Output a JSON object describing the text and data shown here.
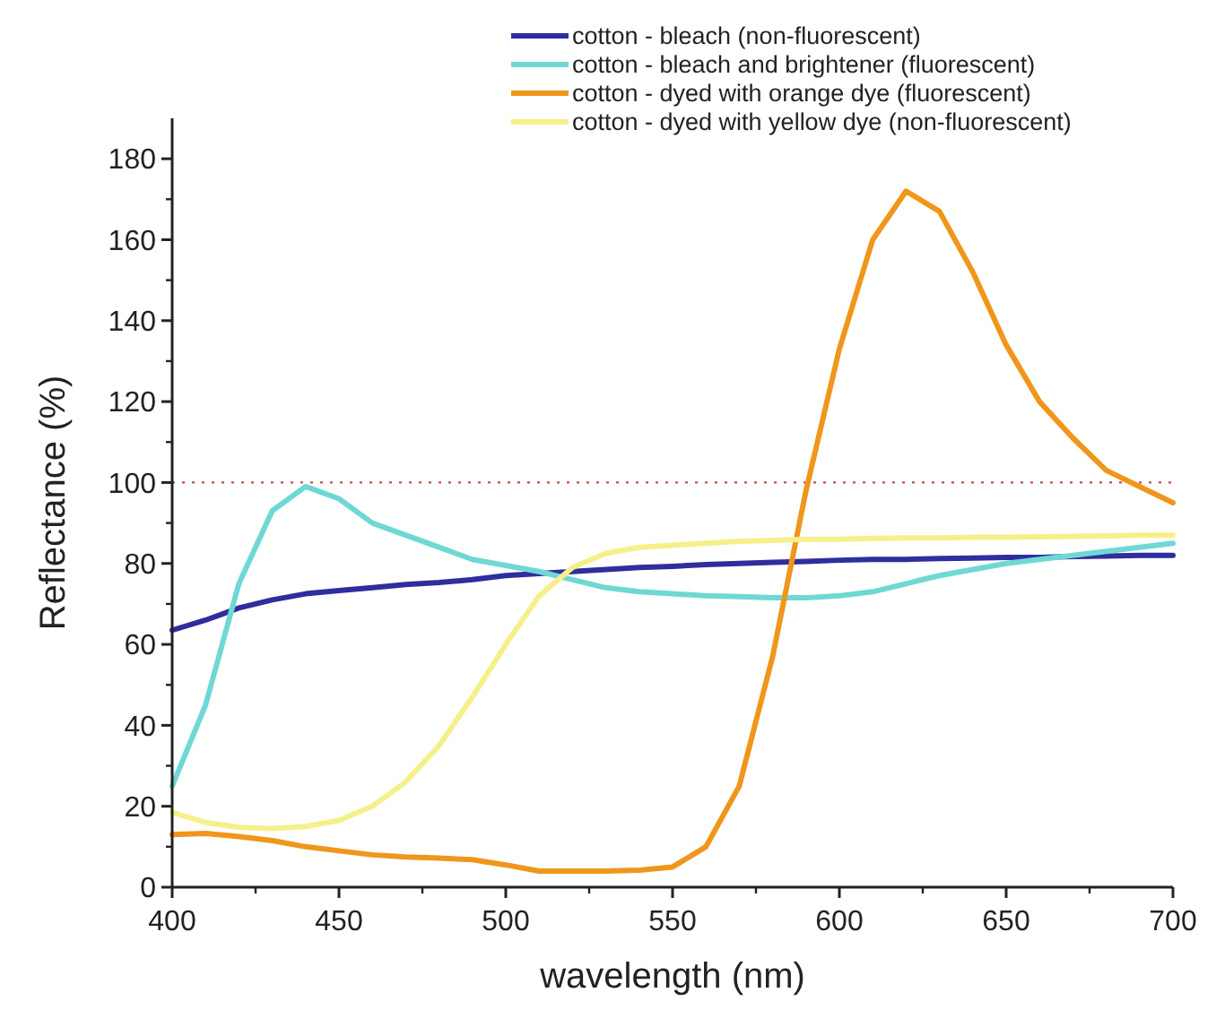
{
  "chart_data": {
    "type": "line",
    "xlabel": "wavelength (nm)",
    "ylabel": "Reflectance (%)",
    "x": [
      400,
      410,
      420,
      430,
      440,
      450,
      460,
      470,
      480,
      490,
      500,
      510,
      520,
      530,
      540,
      550,
      560,
      570,
      580,
      590,
      600,
      610,
      620,
      630,
      640,
      650,
      660,
      670,
      680,
      690,
      700
    ],
    "series": [
      {
        "name": "cotton - bleach (non-fluorescent)",
        "color": "#2e2e9e",
        "values": [
          63.5,
          66,
          69,
          71,
          72.5,
          73.3,
          74,
          74.8,
          75.3,
          76,
          77,
          77.5,
          78,
          78.5,
          79,
          79.3,
          79.7,
          80,
          80.3,
          80.5,
          80.8,
          81,
          81,
          81.2,
          81.3,
          81.5,
          81.5,
          81.7,
          81.8,
          82,
          82
        ]
      },
      {
        "name": "cotton - bleach and brightener (fluorescent)",
        "color": "#6fd8d4",
        "values": [
          25,
          45,
          75,
          93,
          99,
          96,
          90,
          87,
          84,
          81,
          79.5,
          78,
          76,
          74,
          73,
          72.5,
          72,
          71.8,
          71.5,
          71.5,
          72,
          73,
          75,
          77,
          78.5,
          80,
          81,
          82,
          83,
          84,
          85
        ]
      },
      {
        "name": "cotton - dyed with orange dye (fluorescent)",
        "color": "#f0961c",
        "values": [
          13,
          13.3,
          12.5,
          11.5,
          10,
          9,
          8,
          7.5,
          7.2,
          6.8,
          5.5,
          4,
          4,
          4,
          4.2,
          5,
          10,
          25,
          57,
          98,
          133,
          160,
          172,
          167,
          152,
          134,
          120,
          111,
          103,
          99,
          95
        ]
      },
      {
        "name": "cotton - dyed with yellow dye (non-fluorescent)",
        "color": "#f5f08a",
        "values": [
          18.5,
          16,
          14.8,
          14.5,
          15,
          16.5,
          20,
          26,
          35,
          47,
          60,
          72,
          79,
          82.5,
          84,
          84.5,
          85,
          85.5,
          85.7,
          86,
          86,
          86.2,
          86.3,
          86.3,
          86.5,
          86.5,
          86.6,
          86.7,
          86.8,
          87,
          87
        ]
      }
    ],
    "xlim": [
      400,
      700
    ],
    "xticks": [
      400,
      450,
      500,
      550,
      600,
      650,
      700
    ],
    "ylim": [
      0,
      190
    ],
    "yticks": [
      0,
      20,
      40,
      60,
      80,
      100,
      120,
      140,
      160,
      180
    ],
    "ref_lines": [
      {
        "axis": "y",
        "value": 100,
        "color": "#c0504d",
        "line_style": "dotted"
      }
    ],
    "legend": "top right",
    "grid": false,
    "marker": "none",
    "line_style": "solid"
  }
}
